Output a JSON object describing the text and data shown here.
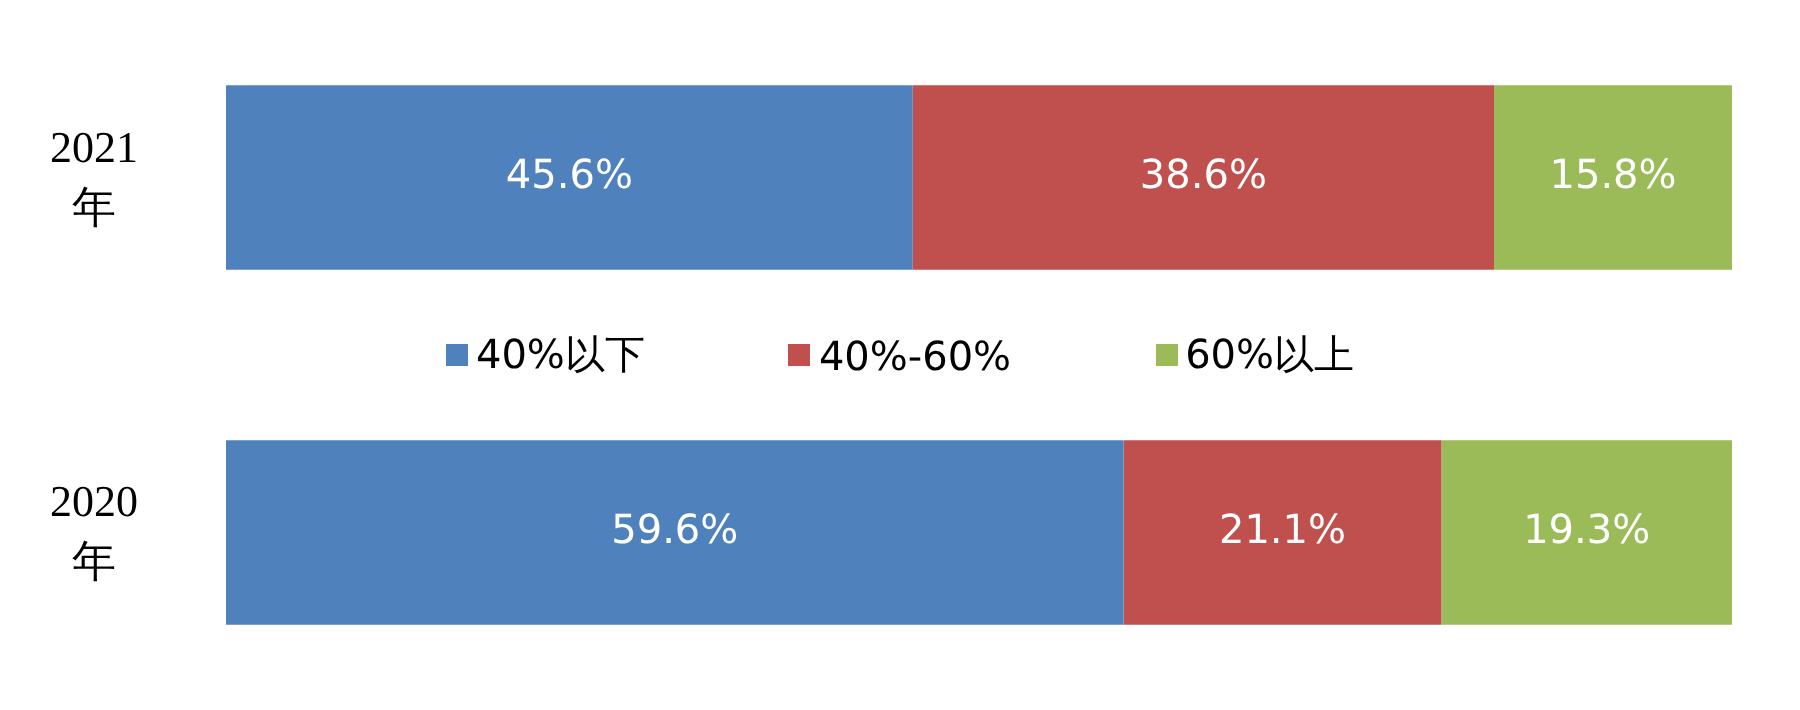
{
  "chart_data": {
    "type": "bar",
    "orientation": "horizontal",
    "stacked": true,
    "legend": "center",
    "categories": [
      "2021年",
      "2020年"
    ],
    "series": [
      {
        "name": "40%以下",
        "color": "#4f81bd",
        "values": [
          45.6,
          59.6
        ],
        "value_labels": [
          "45.6%",
          "59.6%"
        ]
      },
      {
        "name": "40%-60%",
        "color": "#c0504d",
        "values": [
          38.6,
          21.1
        ],
        "value_labels": [
          "38.6%",
          "21.1%"
        ]
      },
      {
        "name": "60%以上",
        "color": "#9bbb59",
        "values": [
          15.8,
          19.3
        ],
        "value_labels": [
          "15.8%",
          "19.3%"
        ]
      }
    ]
  }
}
